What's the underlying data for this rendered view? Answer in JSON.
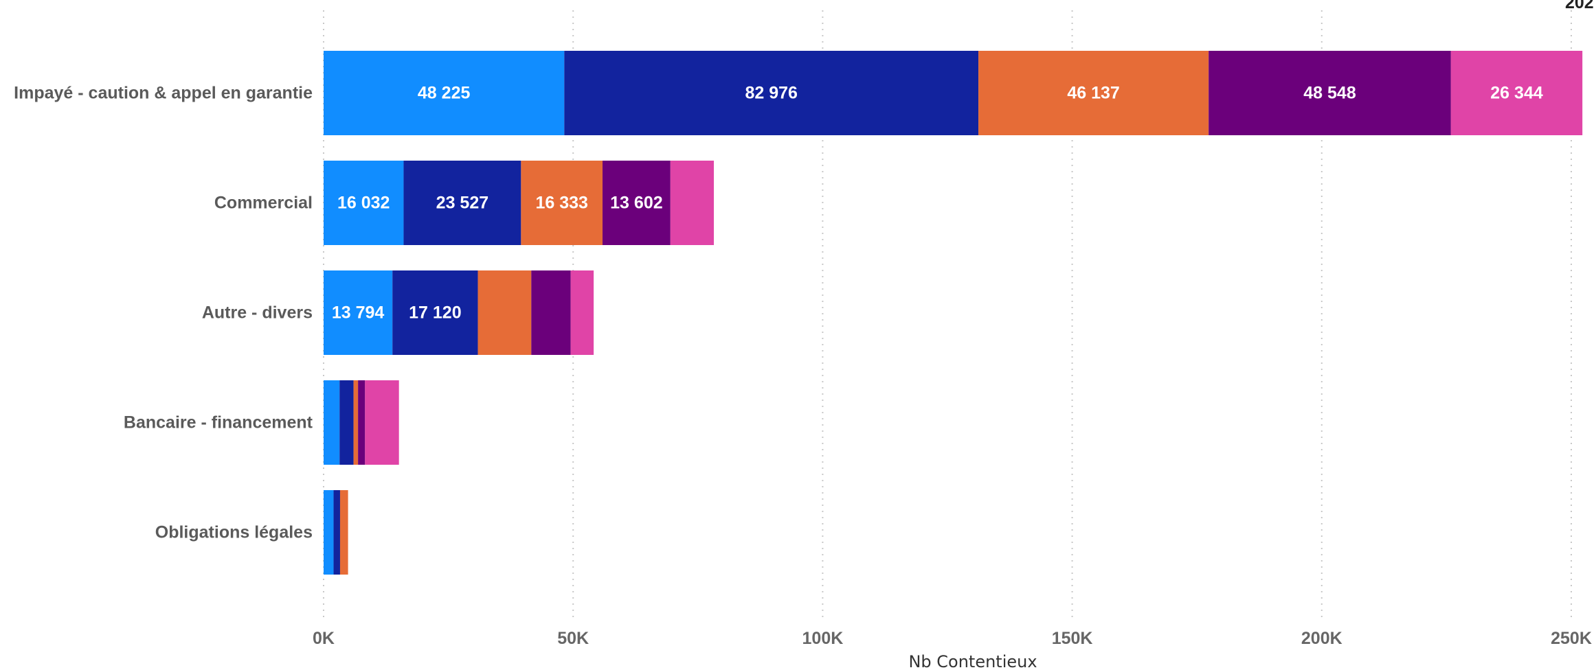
{
  "chart_data": {
    "type": "bar",
    "orientation": "horizontal",
    "stacked": true,
    "categories": [
      "Impayé - caution & appel en garantie",
      "Commercial",
      "Autre - divers",
      "Bancaire - financement",
      "Obligations légales"
    ],
    "series": [
      {
        "color": "#118DFF",
        "values": [
          48225,
          16032,
          13794,
          3200,
          2000
        ]
      },
      {
        "color": "#12239E",
        "values": [
          82976,
          23527,
          17120,
          2800,
          1300
        ]
      },
      {
        "color": "#E66C37",
        "values": [
          46137,
          16333,
          10700,
          900,
          1600
        ]
      },
      {
        "color": "#6B007B",
        "values": [
          48548,
          13602,
          7900,
          1400,
          0
        ]
      },
      {
        "color": "#E044A7",
        "values": [
          26344,
          8700,
          4600,
          6800,
          0
        ]
      }
    ],
    "data_labels": [
      [
        "48 225",
        "16 032",
        "13 794",
        "",
        ""
      ],
      [
        "82 976",
        "23 527",
        "17 120",
        "",
        ""
      ],
      [
        "46 137",
        "16 333",
        "",
        "",
        ""
      ],
      [
        "48 548",
        "13 602",
        "",
        "",
        ""
      ],
      [
        "26 344",
        "",
        "",
        "",
        ""
      ]
    ],
    "xlabel": "Nb Contentieux",
    "ylabel": "",
    "title": "",
    "xlim": [
      0,
      250000
    ],
    "x_ticks": [
      0,
      50000,
      100000,
      150000,
      200000,
      250000
    ],
    "x_tick_labels": [
      "0K",
      "50K",
      "100K",
      "150K",
      "200K",
      "250K"
    ],
    "gridlines": "vertical dotted",
    "legend_fragment": "202"
  }
}
